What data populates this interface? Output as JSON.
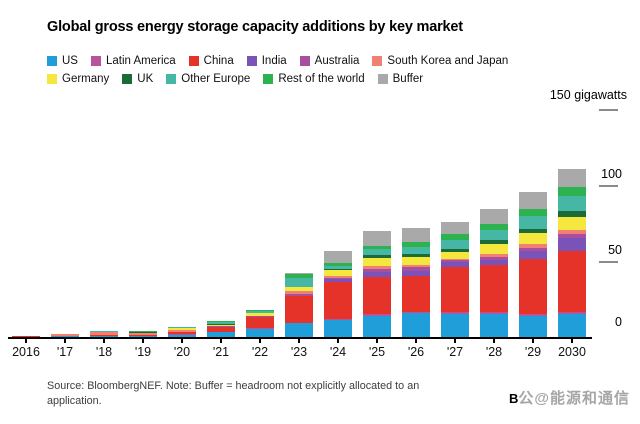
{
  "title": "Global gross energy storage capacity additions by key market",
  "axis": {
    "unit_label": "150 gigawatts",
    "ytick_100": "100",
    "ytick_50": "50",
    "ytick_0": "0"
  },
  "source_note": {
    "line1": "Source: BloombergNEF. Note: Buffer = headroom not explicitly allocated to an",
    "line2": "application."
  },
  "footer": {
    "brand_partial": "B",
    "watermark": "公@能源和通信"
  },
  "chart_data": {
    "type": "bar",
    "stacked": true,
    "title": "Global gross energy storage capacity additions by key market",
    "ylabel": "gigawatts",
    "ylim": [
      0,
      150
    ],
    "yticks": [
      0,
      50,
      100,
      150
    ],
    "grid": false,
    "legend_position": "top",
    "axis_side": "right",
    "categories": [
      "2016",
      "2017",
      "2018",
      "2019",
      "2020",
      "2021",
      "2022",
      "2023",
      "2024",
      "2025",
      "2026",
      "2027",
      "2028",
      "2029",
      "2030"
    ],
    "x_labels": [
      "2016",
      "'17",
      "'18",
      "'19",
      "'20",
      "'21",
      "'22",
      "'23",
      "'24",
      "'25",
      "'26",
      "'27",
      "'28",
      "'29",
      "2030"
    ],
    "unit": "GW",
    "series": [
      {
        "name": "US",
        "color": "#1f9ed9",
        "values": [
          0.3,
          0.4,
          0.5,
          0.5,
          1.6,
          3.5,
          5.5,
          9.0,
          11.5,
          14.0,
          15.5,
          15.3,
          14.9,
          13.6,
          14.9
        ]
      },
      {
        "name": "Latin America",
        "color": "#b5569d",
        "values": [
          0,
          0,
          0,
          0.1,
          0.1,
          0.1,
          0.2,
          0.3,
          0.5,
          1.1,
          1.2,
          1.2,
          1.5,
          1.7,
          1.3
        ]
      },
      {
        "name": "China",
        "color": "#e63329",
        "values": [
          0.2,
          0.4,
          0.6,
          0.6,
          1.4,
          3.0,
          7.5,
          17.5,
          24.5,
          24.1,
          23.5,
          29.6,
          30.7,
          36.2,
          40.3
        ]
      },
      {
        "name": "India",
        "color": "#7a52b8",
        "values": [
          0,
          0,
          0,
          0,
          0.1,
          0.1,
          0.2,
          0.5,
          1.5,
          3.3,
          3.5,
          3.0,
          3.3,
          5.1,
          8.4
        ]
      },
      {
        "name": "Australia",
        "color": "#a94f9f",
        "values": [
          0,
          0.1,
          0.1,
          0.2,
          0.2,
          0.3,
          0.3,
          0.7,
          1.0,
          2.6,
          2.2,
          1.5,
          2.2,
          2.2,
          2.6
        ]
      },
      {
        "name": "South Korea and Japan",
        "color": "#f08172",
        "values": [
          0.4,
          1.0,
          2.0,
          1.2,
          1.4,
          0.5,
          0.4,
          2.0,
          1.5,
          1.8,
          1.8,
          1.0,
          1.8,
          2.6,
          2.8
        ]
      },
      {
        "name": "Germany",
        "color": "#f6e73e",
        "values": [
          0.1,
          0.1,
          0.2,
          0.3,
          1.2,
          0.7,
          1.4,
          2.8,
          3.3,
          5.1,
          4.9,
          4.4,
          6.6,
          7.2,
          8.6
        ]
      },
      {
        "name": "UK",
        "color": "#1a6b38",
        "values": [
          0,
          0.1,
          0.2,
          0.2,
          0.1,
          0.3,
          0.3,
          0.4,
          1.0,
          2.0,
          1.8,
          2.2,
          2.6,
          2.6,
          3.9
        ]
      },
      {
        "name": "Other Europe",
        "color": "#46b6a5",
        "values": [
          0,
          0.1,
          0.1,
          0.5,
          0.4,
          1.2,
          1.4,
          5.5,
          2.2,
          4.2,
          4.6,
          5.5,
          6.6,
          8.2,
          9.9
        ]
      },
      {
        "name": "Rest of the world",
        "color": "#2cb34f",
        "values": [
          0,
          0.1,
          0.1,
          0.2,
          0.2,
          0.8,
          0.5,
          2.6,
          1.6,
          2.0,
          3.5,
          3.8,
          4.3,
          5.0,
          5.9
        ]
      },
      {
        "name": "Buffer",
        "color": "#a9a9a9",
        "values": [
          0,
          0,
          0,
          0,
          0,
          0,
          0,
          0.7,
          8.0,
          9.4,
          9.5,
          8.4,
          9.9,
          11.0,
          11.8
        ]
      }
    ],
    "legend_rows": [
      [
        0,
        1,
        2,
        3,
        4,
        5
      ],
      [
        6,
        7,
        8,
        9,
        10
      ]
    ]
  }
}
